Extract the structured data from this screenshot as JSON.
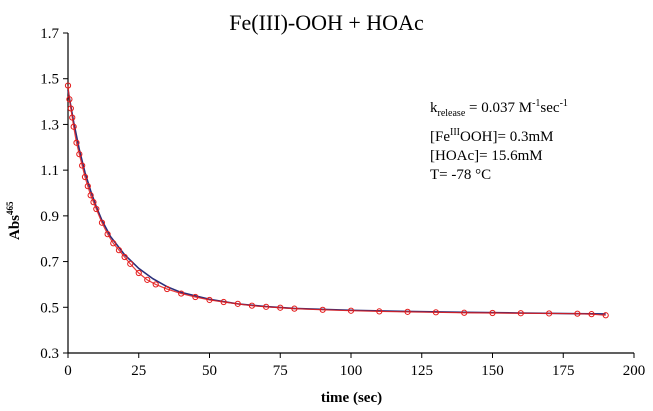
{
  "chart_data": {
    "type": "scatter",
    "title": "Fe(III)-OOH + HOAc",
    "xlabel": "time (sec)",
    "ylabel": "Abs",
    "ylabel_superscript": "465",
    "xlim": [
      0,
      200
    ],
    "ylim": [
      0.3,
      1.7
    ],
    "x_ticks": [
      0,
      25,
      50,
      75,
      100,
      125,
      150,
      175,
      200
    ],
    "y_ticks": [
      0.3,
      0.5,
      0.7,
      0.9,
      1.1,
      1.3,
      1.5,
      1.7
    ],
    "grid": false,
    "legend": "none",
    "annotations": {
      "k_release_prefix": "k",
      "k_release_subscript": "release",
      "k_release_mid": "= 0.037 M",
      "k_release_sup1": "-1",
      "k_release_unit": "sec",
      "k_release_sup2": "-1",
      "fe_prefix": "[Fe",
      "fe_sup": "III",
      "fe_suffix": "OOH]= 0.3mM",
      "hoac": "[HOAc]= 15.6mM",
      "temperature": "T= -78 °C"
    },
    "series": [
      {
        "style": "markers",
        "marker": "open-circle",
        "color": "#e41b1b",
        "x": [
          0,
          0.5,
          1,
          1.5,
          2,
          3,
          4,
          5,
          6,
          7,
          8,
          9,
          10,
          12,
          14,
          16,
          18,
          20,
          22,
          25,
          28,
          31,
          35,
          40,
          45,
          50,
          55,
          60,
          65,
          70,
          75,
          80,
          90,
          100,
          110,
          120,
          130,
          140,
          150,
          160,
          170,
          180,
          185,
          190
        ],
        "y": [
          1.47,
          1.41,
          1.37,
          1.33,
          1.29,
          1.22,
          1.17,
          1.12,
          1.07,
          1.03,
          0.99,
          0.96,
          0.93,
          0.87,
          0.82,
          0.78,
          0.75,
          0.72,
          0.69,
          0.65,
          0.62,
          0.6,
          0.58,
          0.56,
          0.545,
          0.532,
          0.523,
          0.515,
          0.507,
          0.502,
          0.498,
          0.494,
          0.489,
          0.485,
          0.482,
          0.48,
          0.478,
          0.476,
          0.475,
          0.474,
          0.473,
          0.472,
          0.47,
          0.465
        ]
      },
      {
        "style": "line",
        "color": "#2b2f7a",
        "x": [
          0,
          2,
          4,
          6,
          8,
          10,
          12,
          15,
          20,
          25,
          30,
          35,
          40,
          50,
          60,
          70,
          80,
          100,
          120,
          140,
          160,
          180,
          190
        ],
        "y": [
          1.45,
          1.31,
          1.19,
          1.09,
          1.01,
          0.94,
          0.88,
          0.81,
          0.73,
          0.67,
          0.625,
          0.59,
          0.565,
          0.535,
          0.515,
          0.503,
          0.495,
          0.487,
          0.482,
          0.478,
          0.475,
          0.472,
          0.471
        ]
      }
    ]
  }
}
